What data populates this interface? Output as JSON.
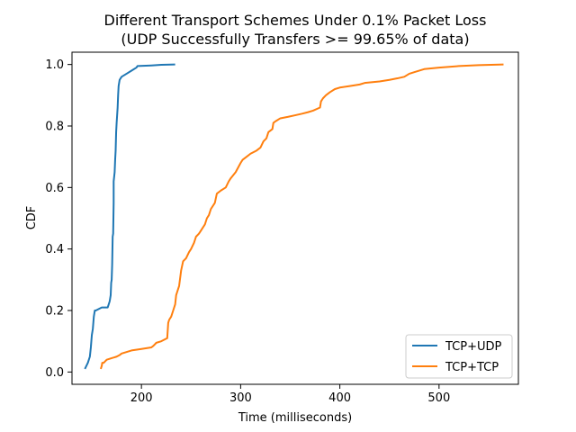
{
  "chart_data": {
    "type": "line",
    "title_line1": "Different Transport Schemes Under 0.1% Packet Loss",
    "title_line2": "(UDP Successfully Transfers >= 99.65% of data)",
    "xlabel": "Time (milliseconds)",
    "ylabel": "CDF",
    "xlim": [
      130,
      580
    ],
    "ylim": [
      -0.04,
      1.04
    ],
    "xticks": [
      200,
      300,
      400,
      500
    ],
    "yticks": [
      0.0,
      0.2,
      0.4,
      0.6,
      0.8,
      1.0
    ],
    "xtick_labels": [
      "200",
      "300",
      "400",
      "500"
    ],
    "ytick_labels": [
      "0.0",
      "0.2",
      "0.4",
      "0.6",
      "0.8",
      "1.0"
    ],
    "grid": false,
    "legend_position": "lower-right",
    "series": [
      {
        "name": "TCP+UDP",
        "color": "#1f77b4",
        "x": [
          143,
          146,
          148,
          149,
          149.5,
          150,
          151,
          151.5,
          152,
          153,
          154,
          160,
          166,
          167,
          168,
          169,
          169.5,
          170,
          170.5,
          171,
          171.5,
          172,
          172,
          173,
          173.5,
          174,
          174.5,
          175,
          176,
          176.5,
          177,
          178,
          180,
          185,
          190,
          195,
          196,
          210,
          220,
          234
        ],
        "y": [
          0.01,
          0.03,
          0.05,
          0.08,
          0.1,
          0.12,
          0.14,
          0.16,
          0.18,
          0.2,
          0.2,
          0.21,
          0.21,
          0.22,
          0.23,
          0.25,
          0.29,
          0.3,
          0.35,
          0.44,
          0.45,
          0.55,
          0.62,
          0.65,
          0.69,
          0.72,
          0.78,
          0.81,
          0.86,
          0.9,
          0.93,
          0.95,
          0.96,
          0.97,
          0.98,
          0.99,
          0.995,
          0.997,
          0.999,
          1.0
        ]
      },
      {
        "name": "TCP+TCP",
        "color": "#ff7f0e",
        "x": [
          159,
          160,
          160.5,
          162,
          165,
          170,
          175,
          178,
          180,
          190,
          200,
          210,
          212,
          215,
          220,
          226,
          227,
          228,
          230,
          232,
          234,
          235,
          236,
          237,
          238,
          240,
          242,
          245,
          248,
          250,
          253,
          255,
          258,
          260,
          264,
          266,
          268,
          270,
          274,
          276,
          280,
          285,
          288,
          290,
          295,
          300,
          302,
          306,
          310,
          316,
          320,
          323,
          326,
          328,
          332,
          333,
          335,
          340,
          348,
          355,
          362,
          368,
          373,
          380,
          381,
          383,
          386,
          390,
          395,
          400,
          410,
          420,
          425,
          440,
          450,
          458,
          465,
          470,
          475,
          485,
          500,
          520,
          540,
          565
        ],
        "y": [
          0.01,
          0.02,
          0.03,
          0.03,
          0.04,
          0.045,
          0.05,
          0.055,
          0.06,
          0.07,
          0.075,
          0.08,
          0.085,
          0.095,
          0.1,
          0.11,
          0.16,
          0.17,
          0.18,
          0.2,
          0.22,
          0.25,
          0.26,
          0.27,
          0.28,
          0.33,
          0.36,
          0.37,
          0.39,
          0.4,
          0.42,
          0.44,
          0.45,
          0.46,
          0.48,
          0.5,
          0.51,
          0.53,
          0.55,
          0.58,
          0.59,
          0.6,
          0.62,
          0.63,
          0.65,
          0.68,
          0.69,
          0.7,
          0.71,
          0.72,
          0.73,
          0.75,
          0.76,
          0.78,
          0.79,
          0.81,
          0.815,
          0.825,
          0.83,
          0.835,
          0.84,
          0.845,
          0.85,
          0.86,
          0.88,
          0.89,
          0.9,
          0.91,
          0.92,
          0.925,
          0.93,
          0.935,
          0.94,
          0.945,
          0.95,
          0.955,
          0.96,
          0.97,
          0.975,
          0.985,
          0.99,
          0.995,
          0.998,
          1.0
        ]
      }
    ]
  }
}
